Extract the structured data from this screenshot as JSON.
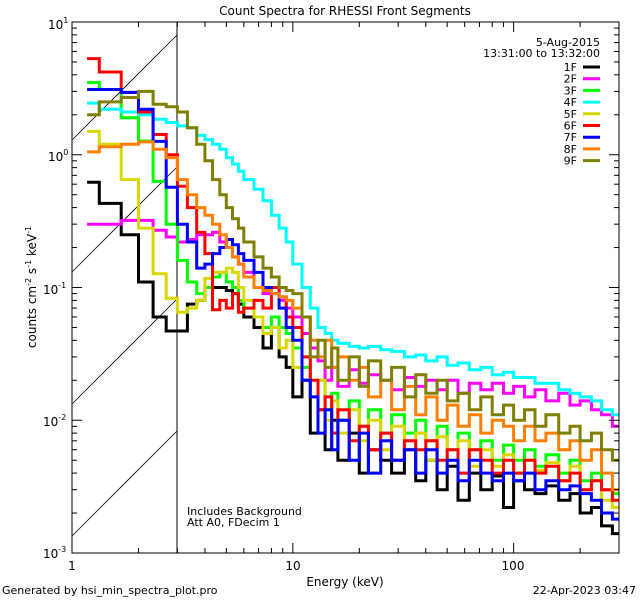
{
  "chart_data": {
    "type": "line",
    "title": "Count Spectra for RHESSI Front Segments",
    "xlabel": "Energy (keV)",
    "ylabel": {
      "parts": [
        "counts cm",
        "-2",
        " s",
        "-1",
        " keV",
        "-1"
      ]
    },
    "xscale": "log",
    "yscale": "log",
    "xlim": [
      1,
      300
    ],
    "ylim": [
      0.001,
      10
    ],
    "x_ticks": [
      {
        "value": 1,
        "label": "1"
      },
      {
        "value": 10,
        "label": "10"
      },
      {
        "value": 100,
        "label": "100"
      }
    ],
    "y_ticks": [
      {
        "value": 10,
        "base": "10",
        "exp": "1"
      },
      {
        "value": 1,
        "base": "10",
        "exp": "0"
      },
      {
        "value": 0.1,
        "base": "10",
        "exp": "-1"
      },
      {
        "value": 0.01,
        "base": "10",
        "exp": "-2"
      },
      {
        "value": 0.001,
        "base": "10",
        "exp": "-3"
      }
    ],
    "hatched_region_keV": [
      1,
      3
    ],
    "legend": {
      "position": "top-right",
      "date": "5-Aug-2015",
      "time_range": "13:31:00 to 13:32:00"
    },
    "annotations": [
      "Includes Background",
      "Att A0, FDecim 1"
    ],
    "energy_bin_edges_keV": [
      1.17,
      1.33,
      1.67,
      2.0,
      2.33,
      2.67,
      3.0,
      3.33,
      3.67,
      4.0,
      4.33,
      4.67,
      5.0,
      5.33,
      5.67,
      6.0,
      6.67,
      7.33,
      8.0,
      8.67,
      9.33,
      10,
      11,
      12,
      13,
      14,
      15,
      16,
      18,
      20,
      22,
      25,
      28,
      32,
      36,
      40,
      45,
      50,
      56,
      63,
      71,
      80,
      90,
      100,
      112,
      125,
      140,
      160,
      180,
      200,
      225,
      250,
      280,
      300
    ],
    "series": [
      {
        "name": "1F",
        "color": "#000000",
        "values": [
          0.62,
          0.43,
          0.25,
          0.11,
          0.06,
          0.047,
          0.047,
          0.075,
          0.08,
          0.1,
          0.1,
          0.1,
          0.095,
          0.09,
          0.075,
          0.06,
          0.05,
          0.035,
          0.05,
          0.03,
          0.025,
          0.015,
          0.02,
          0.008,
          0.012,
          0.006,
          0.01,
          0.005,
          0.008,
          0.004,
          0.006,
          0.005,
          0.004,
          0.006,
          0.0035,
          0.005,
          0.003,
          0.0045,
          0.0025,
          0.004,
          0.003,
          0.0038,
          0.0022,
          0.0035,
          0.003,
          0.0028,
          0.0032,
          0.0025,
          0.0028,
          0.002,
          0.0022,
          0.0016,
          0.0014
        ]
      },
      {
        "name": "2F",
        "color": "#ff00ff",
        "values": [
          0.3,
          0.3,
          0.32,
          0.32,
          0.27,
          0.24,
          0.22,
          0.23,
          0.25,
          0.25,
          0.26,
          0.22,
          0.2,
          0.17,
          0.15,
          0.13,
          0.1,
          0.09,
          0.1,
          0.08,
          0.07,
          0.06,
          0.045,
          0.035,
          0.028,
          0.02,
          0.025,
          0.018,
          0.024,
          0.019,
          0.022,
          0.02,
          0.017,
          0.021,
          0.018,
          0.02,
          0.017,
          0.02,
          0.016,
          0.019,
          0.017,
          0.019,
          0.016,
          0.018,
          0.015,
          0.017,
          0.014,
          0.016,
          0.013,
          0.014,
          0.012,
          0.011,
          0.009
        ]
      },
      {
        "name": "3F",
        "color": "#00ff00",
        "values": [
          3.5,
          3.1,
          1.9,
          1.27,
          0.63,
          0.3,
          0.16,
          0.11,
          0.09,
          0.1,
          0.12,
          0.13,
          0.11,
          0.1,
          0.08,
          0.07,
          0.06,
          0.05,
          0.06,
          0.05,
          0.045,
          0.035,
          0.025,
          0.015,
          0.02,
          0.012,
          0.016,
          0.01,
          0.014,
          0.009,
          0.012,
          0.008,
          0.011,
          0.008,
          0.01,
          0.007,
          0.009,
          0.006,
          0.008,
          0.006,
          0.007,
          0.005,
          0.0065,
          0.005,
          0.006,
          0.0045,
          0.0055,
          0.004,
          0.005,
          0.0035,
          0.004,
          0.003,
          0.0028
        ]
      },
      {
        "name": "4F",
        "color": "#00ffff",
        "values": [
          2.45,
          2.2,
          2.1,
          2.0,
          1.85,
          1.75,
          1.65,
          1.6,
          1.4,
          1.3,
          1.2,
          1.1,
          0.95,
          0.85,
          0.75,
          0.65,
          0.55,
          0.45,
          0.35,
          0.28,
          0.22,
          0.15,
          0.1,
          0.07,
          0.05,
          0.045,
          0.04,
          0.038,
          0.036,
          0.035,
          0.036,
          0.034,
          0.033,
          0.03,
          0.031,
          0.028,
          0.03,
          0.026,
          0.027,
          0.024,
          0.025,
          0.022,
          0.023,
          0.021,
          0.021,
          0.019,
          0.019,
          0.017,
          0.016,
          0.015,
          0.014,
          0.012,
          0.011
        ]
      },
      {
        "name": "5F",
        "color": "#d8d800",
        "values": [
          1.5,
          1.2,
          0.65,
          0.28,
          0.127,
          0.083,
          0.065,
          0.07,
          0.08,
          0.117,
          0.13,
          0.13,
          0.14,
          0.13,
          0.1,
          0.08,
          0.06,
          0.045,
          0.05,
          0.035,
          0.04,
          0.025,
          0.03,
          0.015,
          0.02,
          0.01,
          0.014,
          0.008,
          0.012,
          0.007,
          0.01,
          0.006,
          0.009,
          0.006,
          0.008,
          0.005,
          0.0075,
          0.005,
          0.007,
          0.0045,
          0.006,
          0.0045,
          0.0055,
          0.004,
          0.005,
          0.0042,
          0.0048,
          0.0035,
          0.0045,
          0.003,
          0.0035,
          0.0025,
          0.0022
        ]
      },
      {
        "name": "6F",
        "color": "#ff0000",
        "values": [
          5.3,
          4.2,
          2.95,
          2.1,
          1.42,
          1.0,
          0.58,
          0.4,
          0.26,
          0.18,
          0.068,
          0.08,
          0.07,
          0.09,
          0.065,
          0.07,
          0.08,
          0.07,
          0.1,
          0.085,
          0.06,
          0.05,
          0.03,
          0.02,
          0.012,
          0.015,
          0.008,
          0.012,
          0.007,
          0.009,
          0.006,
          0.008,
          0.005,
          0.007,
          0.006,
          0.007,
          0.005,
          0.006,
          0.004,
          0.006,
          0.005,
          0.004,
          0.005,
          0.004,
          0.005,
          0.004,
          0.0045,
          0.0035,
          0.004,
          0.003,
          0.0035,
          0.003,
          0.0025
        ]
      },
      {
        "name": "7F",
        "color": "#0000ff",
        "values": [
          3.1,
          3.1,
          2.95,
          2.2,
          1.26,
          0.57,
          0.3,
          0.22,
          0.14,
          0.15,
          0.18,
          0.2,
          0.23,
          0.21,
          0.18,
          0.16,
          0.13,
          0.1,
          0.09,
          0.07,
          0.05,
          0.04,
          0.02,
          0.015,
          0.008,
          0.012,
          0.006,
          0.01,
          0.005,
          0.008,
          0.004,
          0.007,
          0.005,
          0.006,
          0.004,
          0.006,
          0.004,
          0.005,
          0.0035,
          0.005,
          0.004,
          0.0035,
          0.004,
          0.0035,
          0.004,
          0.003,
          0.0035,
          0.003,
          0.0032,
          0.0028,
          0.0025,
          0.002,
          0.0018
        ]
      },
      {
        "name": "8F",
        "color": "#ff8000",
        "values": [
          1.05,
          1.15,
          1.2,
          1.25,
          1.1,
          0.95,
          0.65,
          0.5,
          0.4,
          0.35,
          0.3,
          0.25,
          0.2,
          0.17,
          0.15,
          0.12,
          0.1,
          0.095,
          0.09,
          0.085,
          0.08,
          0.07,
          0.06,
          0.04,
          0.03,
          0.04,
          0.025,
          0.03,
          0.02,
          0.025,
          0.015,
          0.02,
          0.012,
          0.018,
          0.011,
          0.015,
          0.01,
          0.013,
          0.009,
          0.011,
          0.008,
          0.01,
          0.009,
          0.007,
          0.009,
          0.007,
          0.008,
          0.006,
          0.007,
          0.005,
          0.006,
          0.004,
          0.003
        ]
      },
      {
        "name": "9F",
        "color": "#808000",
        "values": [
          2.0,
          2.5,
          2.7,
          3.0,
          2.4,
          2.3,
          2.1,
          1.6,
          1.2,
          0.9,
          0.65,
          0.5,
          0.4,
          0.33,
          0.28,
          0.22,
          0.17,
          0.14,
          0.12,
          0.1,
          0.095,
          0.09,
          0.06,
          0.03,
          0.04,
          0.025,
          0.035,
          0.02,
          0.03,
          0.018,
          0.028,
          0.02,
          0.025,
          0.015,
          0.022,
          0.016,
          0.02,
          0.014,
          0.016,
          0.012,
          0.015,
          0.011,
          0.013,
          0.01,
          0.012,
          0.009,
          0.011,
          0.008,
          0.009,
          0.007,
          0.008,
          0.006,
          0.005
        ]
      }
    ]
  },
  "footer": {
    "generated_by": "Generated by hsi_min_spectra_plot.pro",
    "timestamp": "22-Apr-2023 03:47"
  }
}
